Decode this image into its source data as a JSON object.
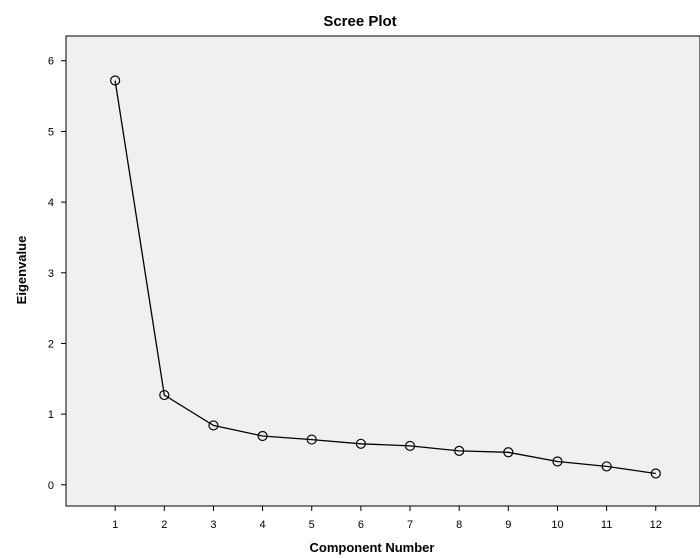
{
  "chart_data": {
    "type": "line",
    "title": "Scree Plot",
    "xlabel": "Component Number",
    "ylabel": "Eigenvalue",
    "x": [
      1,
      2,
      3,
      4,
      5,
      6,
      7,
      8,
      9,
      10,
      11,
      12
    ],
    "series": [
      {
        "values": [
          5.72,
          1.27,
          0.84,
          0.69,
          0.64,
          0.58,
          0.55,
          0.48,
          0.46,
          0.33,
          0.26,
          0.16
        ]
      }
    ],
    "xticks": [
      "1",
      "2",
      "3",
      "4",
      "5",
      "6",
      "7",
      "8",
      "9",
      "10",
      "11",
      "12"
    ],
    "yticks": [
      "0",
      "1",
      "2",
      "3",
      "4",
      "5",
      "6"
    ],
    "xlim": [
      0.0,
      12.9
    ],
    "ylim": [
      -0.3,
      6.35
    ],
    "grid": false,
    "marker": "open-circle",
    "colors": {
      "plot_background": "#f0f0f0",
      "line": "#000000",
      "border": "#000000"
    }
  }
}
